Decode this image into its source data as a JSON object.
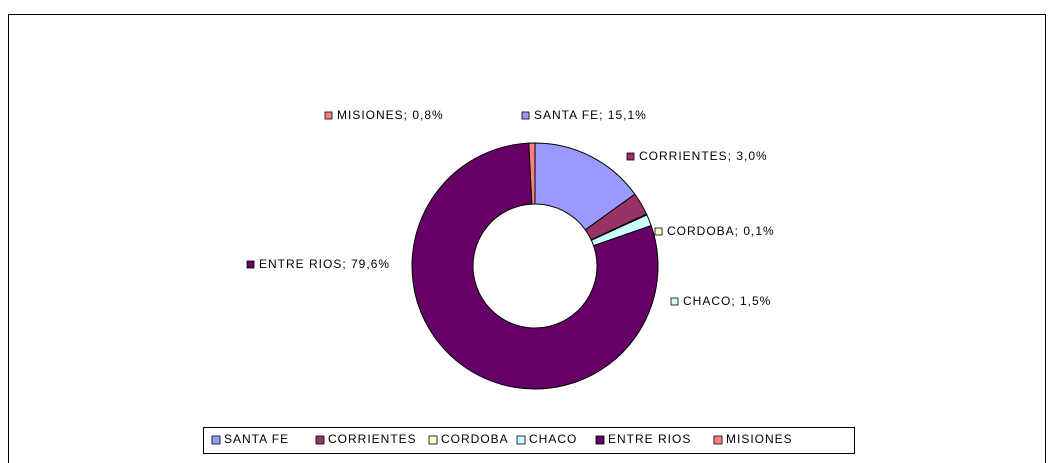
{
  "chart_data": {
    "type": "donut",
    "categories": [
      "SANTA FE",
      "CORRIENTES",
      "CORDOBA",
      "CHACO",
      "ENTRE RIOS",
      "MISIONES"
    ],
    "values": [
      15.1,
      3.0,
      0.1,
      1.5,
      79.6,
      0.8
    ],
    "value_labels": [
      "SANTA FE; 15,1%",
      "CORRIENTES; 3,0%",
      "CORDOBA; 0,1%",
      "CHACO; 1,5%",
      "ENTRE RIOS; 79,6%",
      "MISIONES; 0,8%"
    ],
    "colors": [
      "#9999ff",
      "#993366",
      "#ffffcc",
      "#ccffff",
      "#660066",
      "#ff8080"
    ],
    "legend": "bottom"
  }
}
